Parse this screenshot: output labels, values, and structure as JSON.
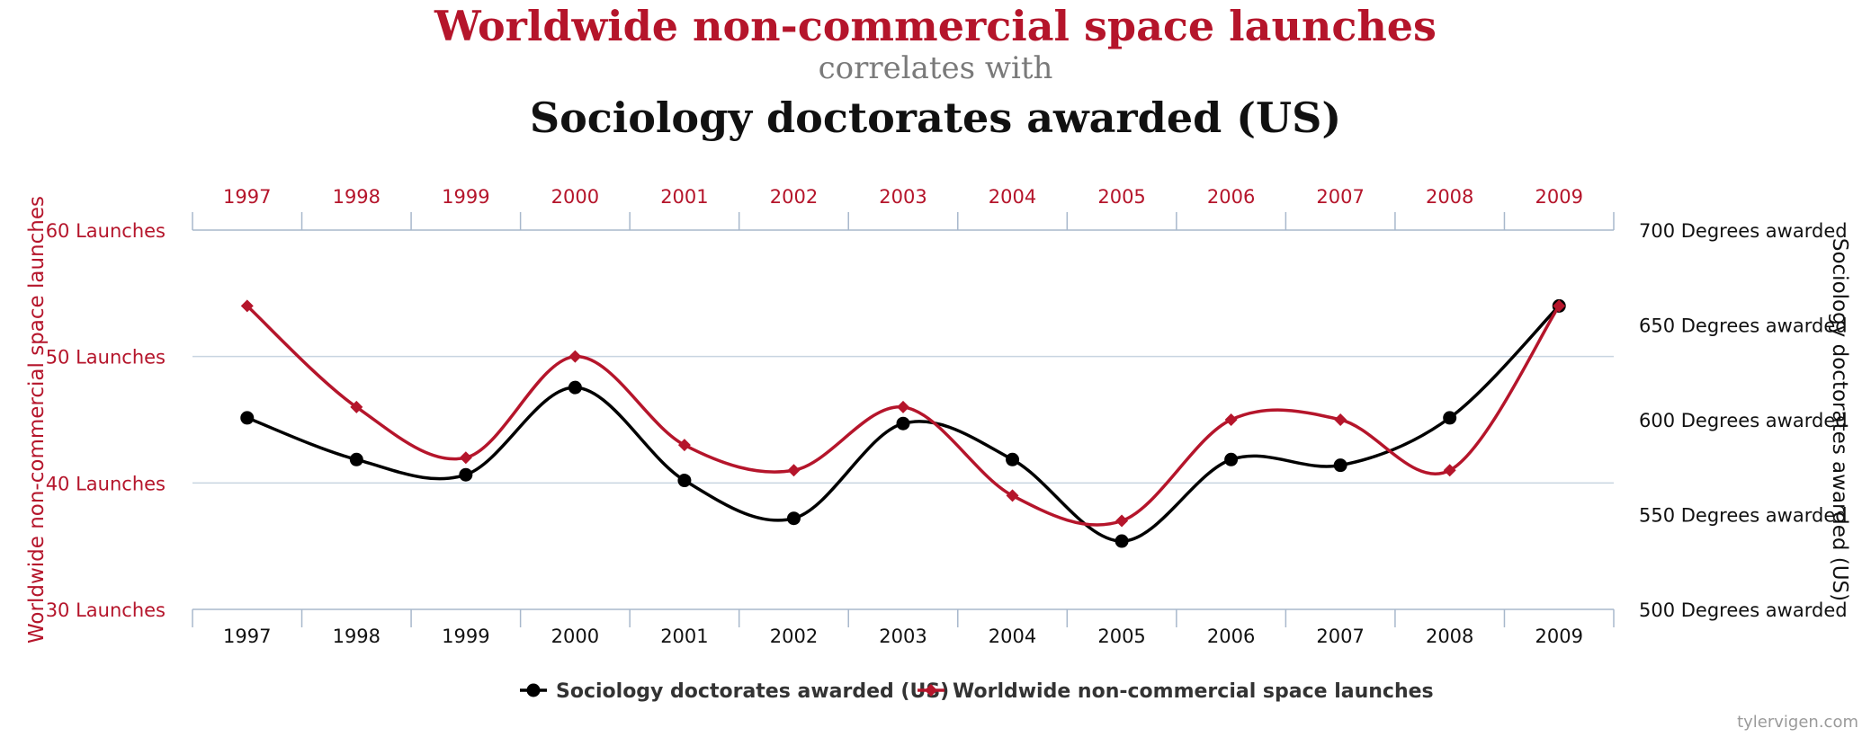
{
  "title": "Worldwide non-commercial space launches",
  "subtitle": "correlates with",
  "title2": "Sociology doctorates awarded (US)",
  "credit": "tylervigen.com",
  "colors": {
    "red": "#b5152b",
    "black": "#000000",
    "grid": "#c8d4e0",
    "axis": "#a8b8cc"
  },
  "chart_data": {
    "type": "line",
    "x": [
      1997,
      1998,
      1999,
      2000,
      2001,
      2002,
      2003,
      2004,
      2005,
      2006,
      2007,
      2008,
      2009
    ],
    "series": [
      {
        "name": "Sociology doctorates awarded (US)",
        "axis": "right",
        "marker": "circle",
        "color": "#000000",
        "values": [
          601,
          579,
          571,
          617,
          568,
          548,
          598,
          579,
          536,
          579,
          576,
          601,
          660
        ]
      },
      {
        "name": "Worldwide non-commercial space launches",
        "axis": "left",
        "marker": "diamond",
        "color": "#b5152b",
        "values": [
          54,
          46,
          42,
          50,
          43,
          41,
          46,
          39,
          37,
          45,
          45,
          41,
          54
        ]
      }
    ],
    "left_axis": {
      "label": "Worldwide non-commercial space launches",
      "ylim": [
        30,
        60
      ],
      "ticks": [
        "30 Launches",
        "40 Launches",
        "50 Launches",
        "60 Launches"
      ],
      "tick_values": [
        30,
        40,
        50,
        60
      ]
    },
    "right_axis": {
      "label": "Sociology doctorates awarded (US)",
      "ylim": [
        500,
        700
      ],
      "ticks": [
        "500 Degrees awarded",
        "550 Degrees awarded",
        "600 Degrees awarded",
        "650 Degrees awarded",
        "700 Degrees awarded"
      ],
      "tick_values": [
        500,
        550,
        600,
        650,
        700
      ]
    },
    "x_labels": [
      "1997",
      "1998",
      "1999",
      "2000",
      "2001",
      "2002",
      "2003",
      "2004",
      "2005",
      "2006",
      "2007",
      "2008",
      "2009"
    ],
    "legend": [
      "Sociology doctorates awarded (US)",
      "Worldwide non-commercial space launches"
    ],
    "legend_position": "bottom-center"
  }
}
